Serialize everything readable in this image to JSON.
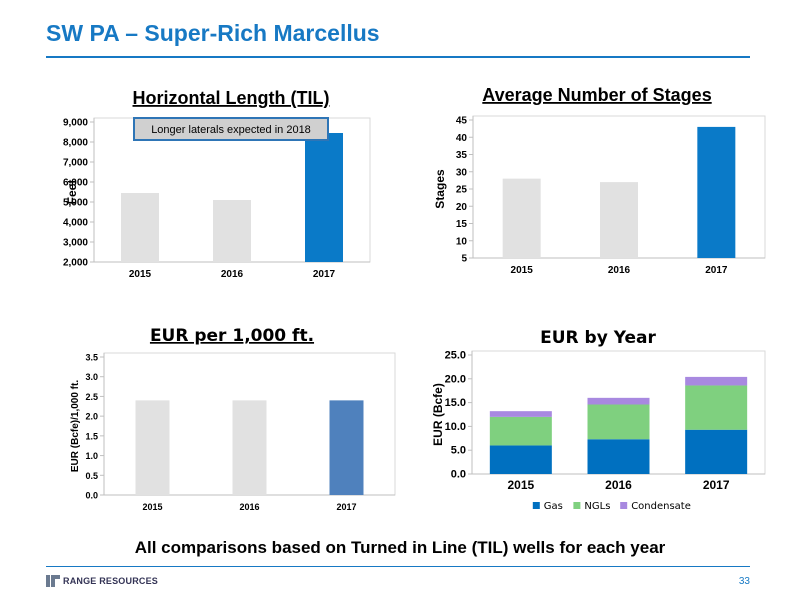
{
  "slide": {
    "title": "SW PA – Super-Rich Marcellus",
    "footnote": "All comparisons based on Turned in Line (TIL) wells for each year",
    "logo_text": "RANGE RESOURCES",
    "page_number": "33"
  },
  "colors": {
    "accent": "#1779c4",
    "bar_gray": "#e1e1e1",
    "bar_steel": "#4f81bd",
    "gas": "#0070c0",
    "ngls": "#7fd07f",
    "condensate": "#a889e0"
  },
  "chart_data": [
    {
      "id": "horizontal-length",
      "type": "bar",
      "title": "Horizontal Length (TIL)",
      "ylabel": "Feet",
      "categories": [
        "2015",
        "2016",
        "2017"
      ],
      "values": [
        5450,
        5100,
        8450
      ],
      "bar_colors": [
        "#e1e1e1",
        "#e1e1e1",
        "#0a7ac8"
      ],
      "ylim": [
        2000,
        9000
      ],
      "yticks": [
        2000,
        3000,
        4000,
        5000,
        6000,
        7000,
        8000,
        9000
      ],
      "ytick_labels": [
        "2,000",
        "3,000",
        "4,000",
        "5,000",
        "6,000",
        "7,000",
        "8,000",
        "9,000"
      ],
      "annotation": "Longer laterals expected in 2018",
      "grid": false
    },
    {
      "id": "average-stages",
      "type": "bar",
      "title": "Average Number of Stages",
      "ylabel": "Stages",
      "categories": [
        "2015",
        "2016",
        "2017"
      ],
      "values": [
        28,
        27,
        43
      ],
      "bar_colors": [
        "#e1e1e1",
        "#e1e1e1",
        "#0a7ac8"
      ],
      "ylim": [
        5,
        45
      ],
      "yticks": [
        5,
        10,
        15,
        20,
        25,
        30,
        35,
        40,
        45
      ],
      "ytick_labels": [
        "5",
        "10",
        "15",
        "20",
        "25",
        "30",
        "35",
        "40",
        "45"
      ],
      "grid": false
    },
    {
      "id": "eur-per-1000ft",
      "type": "bar",
      "title": "EUR per 1,000 ft.",
      "ylabel": "EUR (Bcfe)/1,000 ft.",
      "categories": [
        "2015",
        "2016",
        "2017"
      ],
      "values": [
        2.4,
        2.4,
        2.4
      ],
      "bar_colors": [
        "#e1e1e1",
        "#e1e1e1",
        "#4f81bd"
      ],
      "ylim": [
        0,
        3.5
      ],
      "yticks": [
        0,
        0.5,
        1,
        1.5,
        2,
        2.5,
        3,
        3.5
      ],
      "ytick_labels": [
        "0.0",
        "0.5",
        "1.0",
        "1.5",
        "2.0",
        "2.5",
        "3.0",
        "3.5"
      ],
      "grid": false
    },
    {
      "id": "eur-by-year",
      "type": "bar",
      "stacked": true,
      "title": "EUR by Year",
      "ylabel": "EUR (Bcfe)",
      "categories": [
        "2015",
        "2016",
        "2017"
      ],
      "series": [
        {
          "name": "Gas",
          "values": [
            6.0,
            7.3,
            9.3
          ],
          "color": "#0070c0"
        },
        {
          "name": "NGLs",
          "values": [
            6.0,
            7.3,
            9.3
          ],
          "color": "#7fd07f"
        },
        {
          "name": "Condensate",
          "values": [
            1.2,
            1.4,
            1.8
          ],
          "color": "#a889e0"
        }
      ],
      "ylim": [
        0,
        25
      ],
      "yticks": [
        0,
        5,
        10,
        15,
        20,
        25
      ],
      "ytick_labels": [
        "0.0",
        "5.0",
        "10.0",
        "15.0",
        "20.0",
        "25.0"
      ],
      "legend_position": "bottom",
      "grid": false
    }
  ]
}
